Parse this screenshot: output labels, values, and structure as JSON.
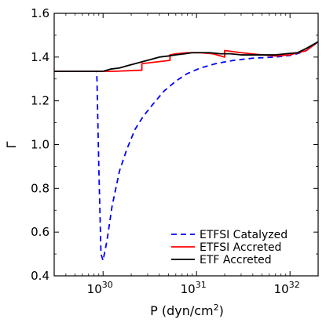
{
  "chart_data": {
    "type": "line",
    "xlabel": "P (dyn/cm",
    "xlabel_sup": "2",
    "xlabel_close": ")",
    "ylabel": "Γ",
    "x_scale": "log",
    "xlim": [
      3e+29,
      2e+32
    ],
    "ylim": [
      0.4,
      1.6
    ],
    "x_ticks": [
      {
        "value": 1e+30,
        "base": "10",
        "exp": "30"
      },
      {
        "value": 1e+31,
        "base": "10",
        "exp": "31"
      },
      {
        "value": 1e+32,
        "base": "10",
        "exp": "32"
      }
    ],
    "y_ticks": [
      {
        "value": 0.4,
        "label": "0.4"
      },
      {
        "value": 0.6,
        "label": "0.6"
      },
      {
        "value": 0.8,
        "label": "0.8"
      },
      {
        "value": 1.0,
        "label": "1.0"
      },
      {
        "value": 1.2,
        "label": "1.2"
      },
      {
        "value": 1.4,
        "label": "1.4"
      },
      {
        "value": 1.6,
        "label": "1.6"
      }
    ],
    "legend_position": "bottom-right",
    "grid": false,
    "series": [
      {
        "name": "ETFSI Catalyzed",
        "color": "#0000ff",
        "style": "dashed",
        "x": [
          3e+29,
          6e+29,
          8.5e+29,
          8.6e+29,
          9e+29,
          9.5e+29,
          1e+30,
          1.1e+30,
          1.25e+30,
          1.5e+30,
          1.8e+30,
          2.2e+30,
          2.7e+30,
          3.5e+30,
          4.5e+30,
          6e+30,
          8e+30,
          1.1e+31,
          1.6e+31,
          2.5e+31,
          4e+31,
          7e+31,
          1.1e+32,
          1.5e+32,
          2e+32
        ],
        "y": [
          1.335,
          1.335,
          1.335,
          1.3,
          0.9,
          0.5,
          0.47,
          0.56,
          0.72,
          0.88,
          0.98,
          1.07,
          1.13,
          1.19,
          1.245,
          1.29,
          1.325,
          1.35,
          1.37,
          1.385,
          1.395,
          1.4,
          1.41,
          1.43,
          1.47
        ]
      },
      {
        "name": "ETFSI Accreted",
        "color": "#ff0000",
        "style": "solid",
        "x": [
          3e+29,
          8.5e+29,
          1.3e+30,
          2.6e+30,
          2.6e+30,
          5.2e+30,
          5.2e+30,
          6e+30,
          8e+30,
          1.1e+31,
          1.5e+31,
          2e+31,
          2e+31,
          3e+31,
          5e+31,
          7e+31,
          1e+32,
          1.5e+32,
          2e+32
        ],
        "y": [
          1.335,
          1.335,
          1.335,
          1.34,
          1.37,
          1.385,
          1.41,
          1.415,
          1.42,
          1.42,
          1.415,
          1.4,
          1.43,
          1.42,
          1.41,
          1.405,
          1.41,
          1.43,
          1.47
        ]
      },
      {
        "name": "ETF Accreted",
        "color": "#000000",
        "style": "solid",
        "x": [
          3e+29,
          1e+30,
          1.2e+30,
          1.5e+30,
          1.8e+30,
          2.2e+30,
          2.7e+30,
          3.3e+30,
          4e+30,
          5e+30,
          6e+30,
          7.5e+30,
          9e+30,
          1.1e+31,
          1.4e+31,
          1.8e+31,
          2.3e+31,
          3e+31,
          4e+31,
          5.5e+31,
          7e+31,
          9e+31,
          1.2e+32,
          1.5e+32,
          2e+32
        ],
        "y": [
          1.335,
          1.335,
          1.345,
          1.35,
          1.36,
          1.37,
          1.38,
          1.39,
          1.4,
          1.405,
          1.41,
          1.415,
          1.42,
          1.42,
          1.42,
          1.415,
          1.415,
          1.41,
          1.41,
          1.41,
          1.41,
          1.415,
          1.42,
          1.44,
          1.47
        ]
      }
    ]
  }
}
